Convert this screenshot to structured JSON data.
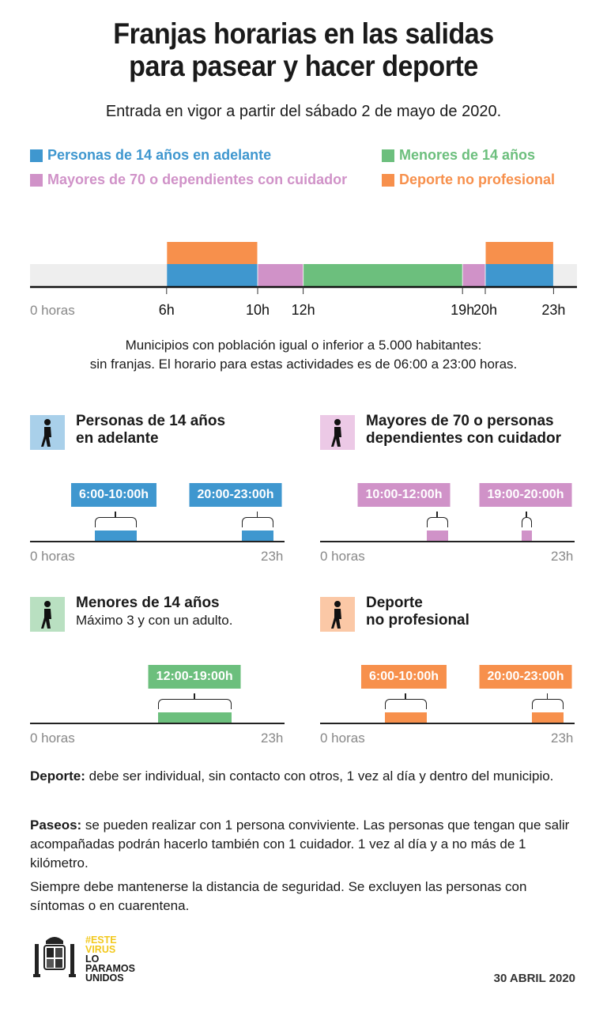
{
  "title": "Franjas horarias en las salidas para pasear y hacer deporte",
  "title_lines": [
    "Franjas horarias en las salidas",
    "para pasear y hacer deporte"
  ],
  "subtitle": "Entrada en vigor a partir del sábado 2 de mayo de 2020.",
  "colors": {
    "blue": "#3f97cf",
    "green": "#6cbf7d",
    "pink": "#d092c8",
    "orange": "#f7904c",
    "bg_band": "#eeeeee"
  },
  "legend": [
    {
      "label": "Personas de 14 años en adelante",
      "color": "#3f97cf"
    },
    {
      "label": "Menores de 14 años",
      "color": "#6cbf7d"
    },
    {
      "label": "Mayores de 70 o dependientes con cuidador",
      "color": "#d092c8"
    },
    {
      "label": "Deporte no profesional",
      "color": "#f7904c"
    }
  ],
  "chart_data": [
    {
      "type": "bar",
      "orientation": "horizontal-timeline",
      "x_unit": "hours",
      "xlim": [
        0,
        24
      ],
      "tick_labels": [
        "0 horas",
        "6h",
        "10h",
        "12h",
        "19h",
        "20h",
        "23h"
      ],
      "tick_values": [
        0,
        6,
        10,
        12,
        19,
        20,
        23
      ],
      "series": [
        {
          "name": "Personas de 14 años en adelante",
          "intervals": [
            [
              6,
              10
            ],
            [
              20,
              23
            ]
          ],
          "color": "#3f97cf",
          "row": "base"
        },
        {
          "name": "Mayores de 70 o dependientes con cuidador",
          "intervals": [
            [
              10,
              12
            ],
            [
              19,
              20
            ]
          ],
          "color": "#d092c8",
          "row": "base"
        },
        {
          "name": "Menores de 14 años",
          "intervals": [
            [
              12,
              19
            ]
          ],
          "color": "#6cbf7d",
          "row": "base"
        },
        {
          "name": "Deporte no profesional",
          "intervals": [
            [
              6,
              10
            ],
            [
              20,
              23
            ]
          ],
          "color": "#f7904c",
          "row": "top"
        }
      ]
    }
  ],
  "note_lines": [
    "Municipios con población igual o inferior a 5.000 habitantes:",
    "sin franjas. El horario para estas actividades es de 06:00 a 23:00 horas."
  ],
  "panels": [
    {
      "title_lines": [
        "Personas de 14 años",
        "en adelante"
      ],
      "note": "",
      "icon": "walking-person-icon",
      "color": "#3f97cf",
      "icon_bg": "#a9d0ea",
      "slots": [
        {
          "label": "6:00-10:00h",
          "from": 6,
          "to": 10
        },
        {
          "label": "20:00-23:00h",
          "from": 20,
          "to": 23
        }
      ],
      "axis_start": "0 horas",
      "axis_end": "23h"
    },
    {
      "title_lines": [
        "Mayores de 70 o personas",
        "dependientes con cuidador"
      ],
      "note": "",
      "icon": "elderly-person-cane-icon",
      "color": "#d092c8",
      "icon_bg": "#ecc9e6",
      "slots": [
        {
          "label": "10:00-12:00h",
          "from": 10,
          "to": 12
        },
        {
          "label": "19:00-20:00h",
          "from": 19,
          "to": 20
        }
      ],
      "axis_start": "0 horas",
      "axis_end": "23h"
    },
    {
      "title_lines": [
        "Menores de 14 años"
      ],
      "note": "Máximo 3 y con un adulto.",
      "icon": "child-scooter-icon",
      "color": "#6cbf7d",
      "icon_bg": "#b9e0c1",
      "slots": [
        {
          "label": "12:00-19:00h",
          "from": 12,
          "to": 19
        }
      ],
      "axis_start": "0 horas",
      "axis_end": "23h"
    },
    {
      "title_lines": [
        "Deporte",
        "no profesional"
      ],
      "note": "",
      "icon": "running-person-icon",
      "color": "#f7904c",
      "icon_bg": "#fbc8a6",
      "slots": [
        {
          "label": "6:00-10:00h",
          "from": 6,
          "to": 10
        },
        {
          "label": "20:00-23:00h",
          "from": 20,
          "to": 23
        }
      ],
      "axis_start": "0 horas",
      "axis_end": "23h"
    }
  ],
  "paragraphs": [
    {
      "bold": "Deporte:",
      "text": " debe ser individual, sin contacto con otros, 1 vez al día y dentro del municipio."
    },
    {
      "bold": "Paseos:",
      "text": " se pueden realizar con 1 persona conviviente. Las personas que tengan que salir acompañadas podrán hacerlo también con 1 cuidador. 1 vez al día y a no más de 1 kilómetro."
    },
    {
      "bold": "",
      "text": "Siempre debe mantenerse la distancia de seguridad. Se excluyen las personas con síntomas o en cuarentena."
    }
  ],
  "footer": {
    "slogan_lines": [
      "#ESTE",
      "VIRUS",
      "LO",
      "PARAMOS",
      "UNIDOS"
    ],
    "date": "30 ABRIL 2020"
  }
}
